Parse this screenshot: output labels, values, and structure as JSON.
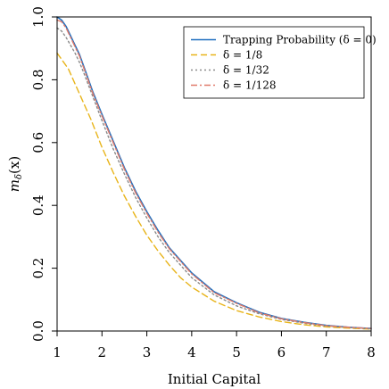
{
  "chart_data": {
    "type": "line",
    "title": "",
    "xlabel": "Initial Capital",
    "ylabel": "m_δ(x)",
    "ylabel_parts": {
      "base": "m",
      "sub": "δ",
      "arg": "(x)"
    },
    "xlim": [
      1,
      8
    ],
    "ylim": [
      0,
      1
    ],
    "x_ticks": [
      1,
      2,
      3,
      4,
      5,
      6,
      7,
      8
    ],
    "y_ticks": [
      "0.0",
      "0.2",
      "0.4",
      "0.6",
      "0.8",
      "1.0"
    ],
    "grid": false,
    "legend_position": "top-right",
    "series": [
      {
        "name": "Trapping Probability (δ = 0)",
        "color": "#1f6fbf",
        "dash": "solid",
        "x": [
          1.0,
          1.1,
          1.2,
          1.3,
          1.4,
          1.5,
          1.6,
          1.8,
          2.0,
          2.25,
          2.5,
          2.75,
          3.0,
          3.25,
          3.5,
          3.75,
          4.0,
          4.5,
          5.0,
          5.5,
          6.0,
          6.5,
          7.0,
          7.5,
          8.0
        ],
        "y": [
          1.0,
          0.99,
          0.97,
          0.94,
          0.91,
          0.88,
          0.84,
          0.76,
          0.69,
          0.605,
          0.52,
          0.445,
          0.38,
          0.32,
          0.265,
          0.225,
          0.185,
          0.125,
          0.09,
          0.06,
          0.04,
          0.028,
          0.018,
          0.012,
          0.008
        ]
      },
      {
        "name": "δ = 1/8",
        "color": "#e8b41a",
        "dash": "dashed",
        "x": [
          1.0,
          1.25,
          1.5,
          1.75,
          2.0,
          2.25,
          2.5,
          2.75,
          3.0,
          3.25,
          3.5,
          3.75,
          4.0,
          4.5,
          5.0,
          5.5,
          6.0,
          6.5,
          7.0,
          7.5,
          8.0
        ],
        "y": [
          0.885,
          0.835,
          0.755,
          0.675,
          0.585,
          0.505,
          0.43,
          0.365,
          0.305,
          0.255,
          0.21,
          0.17,
          0.14,
          0.095,
          0.065,
          0.045,
          0.03,
          0.02,
          0.013,
          0.009,
          0.006
        ]
      },
      {
        "name": "δ = 1/32",
        "color": "#8a8a8a",
        "dash": "dotted",
        "x": [
          1.0,
          1.1,
          1.2,
          1.3,
          1.4,
          1.5,
          1.6,
          1.8,
          2.0,
          2.25,
          2.5,
          2.75,
          3.0,
          3.25,
          3.5,
          3.75,
          4.0,
          4.5,
          5.0,
          5.5,
          6.0,
          6.5,
          7.0,
          7.5,
          8.0
        ],
        "y": [
          0.965,
          0.955,
          0.935,
          0.91,
          0.885,
          0.855,
          0.82,
          0.745,
          0.67,
          0.58,
          0.5,
          0.425,
          0.36,
          0.3,
          0.25,
          0.21,
          0.17,
          0.115,
          0.08,
          0.055,
          0.037,
          0.025,
          0.016,
          0.011,
          0.007
        ]
      },
      {
        "name": "δ = 1/128",
        "color": "#e07a6a",
        "dash": "dashdot",
        "x": [
          1.0,
          1.1,
          1.2,
          1.3,
          1.4,
          1.5,
          1.6,
          1.8,
          2.0,
          2.25,
          2.5,
          2.75,
          3.0,
          3.25,
          3.5,
          3.75,
          4.0,
          4.5,
          5.0,
          5.5,
          6.0,
          6.5,
          7.0,
          7.5,
          8.0
        ],
        "y": [
          0.99,
          0.985,
          0.965,
          0.935,
          0.905,
          0.875,
          0.835,
          0.755,
          0.685,
          0.6,
          0.515,
          0.44,
          0.375,
          0.315,
          0.262,
          0.222,
          0.182,
          0.122,
          0.088,
          0.058,
          0.039,
          0.027,
          0.017,
          0.012,
          0.008
        ]
      }
    ]
  }
}
